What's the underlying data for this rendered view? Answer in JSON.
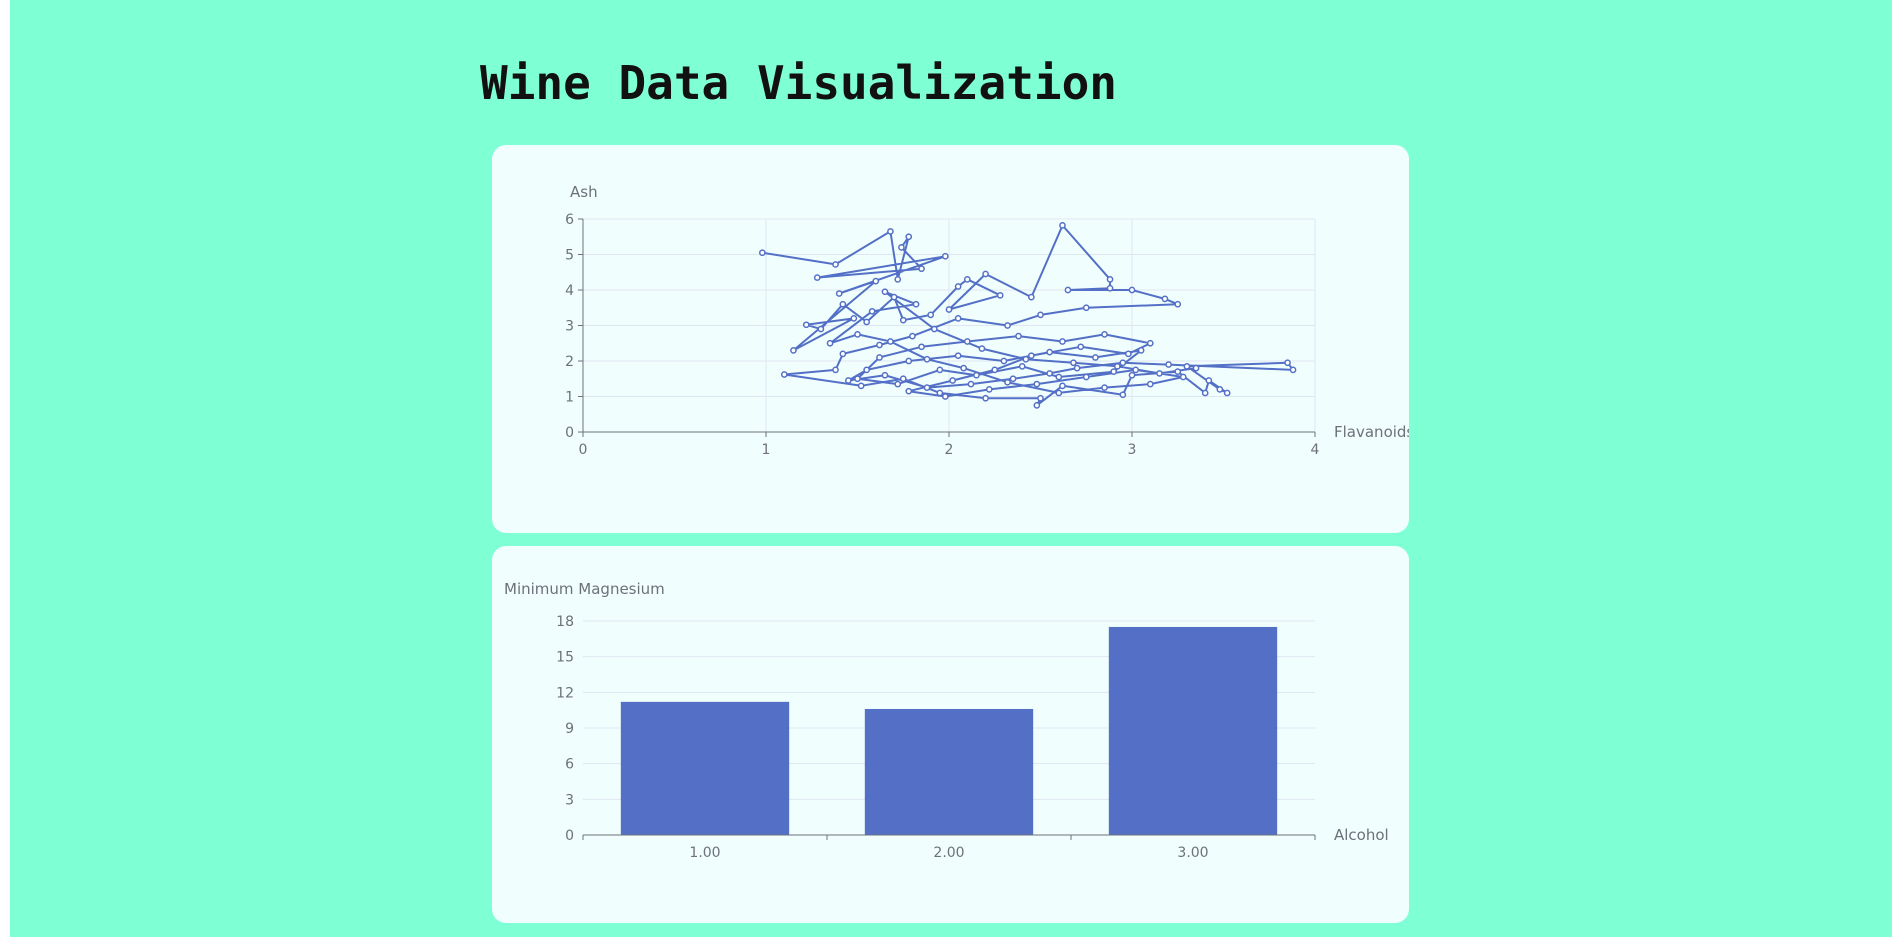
{
  "page": {
    "title": "Wine Data Visualization"
  },
  "colors": {
    "background": "#7fffd4",
    "card": "#f0fffe",
    "series": "#5470c6",
    "axis": "#6e7079",
    "grid": "#e0e6f1"
  },
  "chart_data": [
    {
      "type": "line",
      "title": "",
      "xlabel": "Flavanoids",
      "ylabel": "Ash",
      "xlim": [
        0,
        4
      ],
      "ylim": [
        0,
        6
      ],
      "x_ticks": [
        "0",
        "1",
        "2",
        "3",
        "4"
      ],
      "y_ticks": [
        "0",
        "1",
        "2",
        "3",
        "4",
        "5",
        "6"
      ],
      "grid": "both",
      "legend": "none",
      "marker": "hollow-circle",
      "points": [
        [
          0.98,
          5.05
        ],
        [
          1.38,
          4.72
        ],
        [
          1.68,
          5.65
        ],
        [
          1.72,
          4.3
        ],
        [
          1.78,
          5.5
        ],
        [
          1.74,
          5.2
        ],
        [
          1.85,
          4.6
        ],
        [
          1.28,
          4.35
        ],
        [
          1.98,
          4.95
        ],
        [
          1.4,
          3.9
        ],
        [
          1.6,
          4.25
        ],
        [
          1.15,
          2.3
        ],
        [
          1.48,
          3.2
        ],
        [
          1.22,
          3.02
        ],
        [
          1.3,
          2.9
        ],
        [
          1.42,
          3.6
        ],
        [
          1.55,
          3.1
        ],
        [
          1.7,
          3.8
        ],
        [
          1.75,
          3.15
        ],
        [
          1.9,
          3.3
        ],
        [
          2.05,
          4.1
        ],
        [
          2.1,
          4.3
        ],
        [
          2.28,
          3.85
        ],
        [
          2.0,
          3.45
        ],
        [
          2.2,
          4.45
        ],
        [
          2.45,
          3.8
        ],
        [
          2.62,
          5.82
        ],
        [
          2.88,
          4.3
        ],
        [
          2.88,
          4.05
        ],
        [
          2.65,
          4.0
        ],
        [
          3.0,
          4.0
        ],
        [
          3.18,
          3.75
        ],
        [
          3.25,
          3.6
        ],
        [
          2.75,
          3.5
        ],
        [
          2.5,
          3.3
        ],
        [
          2.32,
          3.0
        ],
        [
          2.05,
          3.2
        ],
        [
          1.8,
          2.7
        ],
        [
          1.62,
          2.45
        ],
        [
          1.42,
          2.2
        ],
        [
          1.38,
          1.75
        ],
        [
          1.1,
          1.62
        ],
        [
          1.52,
          1.3
        ],
        [
          1.75,
          1.5
        ],
        [
          1.95,
          1.1
        ],
        [
          2.2,
          0.95
        ],
        [
          2.5,
          0.95
        ],
        [
          2.48,
          0.75
        ],
        [
          2.62,
          1.3
        ],
        [
          2.95,
          1.05
        ],
        [
          3.0,
          1.6
        ],
        [
          3.25,
          1.7
        ],
        [
          3.4,
          1.1
        ],
        [
          3.42,
          1.45
        ],
        [
          3.52,
          1.1
        ],
        [
          3.48,
          1.2
        ],
        [
          3.3,
          1.85
        ],
        [
          3.85,
          1.95
        ],
        [
          3.88,
          1.75
        ],
        [
          3.2,
          1.9
        ],
        [
          2.95,
          1.95
        ],
        [
          2.7,
          1.8
        ],
        [
          2.55,
          1.65
        ],
        [
          2.35,
          1.5
        ],
        [
          2.12,
          1.35
        ],
        [
          1.88,
          1.25
        ],
        [
          1.65,
          1.6
        ],
        [
          1.45,
          1.45
        ],
        [
          1.55,
          1.75
        ],
        [
          1.78,
          2.0
        ],
        [
          2.05,
          2.15
        ],
        [
          2.3,
          2.0
        ],
        [
          2.55,
          2.25
        ],
        [
          2.8,
          2.1
        ],
        [
          3.05,
          2.3
        ],
        [
          2.9,
          1.7
        ],
        [
          2.6,
          1.55
        ],
        [
          2.4,
          1.85
        ],
        [
          2.15,
          1.6
        ],
        [
          1.95,
          1.75
        ],
        [
          1.72,
          1.35
        ],
        [
          1.5,
          1.5
        ],
        [
          1.62,
          2.1
        ],
        [
          1.85,
          2.4
        ],
        [
          2.1,
          2.55
        ],
        [
          2.38,
          2.7
        ],
        [
          2.62,
          2.55
        ],
        [
          2.85,
          2.75
        ],
        [
          3.1,
          2.5
        ],
        [
          2.98,
          2.2
        ],
        [
          2.72,
          2.4
        ],
        [
          2.45,
          2.15
        ],
        [
          2.25,
          1.75
        ],
        [
          2.02,
          1.45
        ],
        [
          1.78,
          1.15
        ],
        [
          1.98,
          1.0
        ],
        [
          2.22,
          1.2
        ],
        [
          2.48,
          1.35
        ],
        [
          2.75,
          1.55
        ],
        [
          3.02,
          1.75
        ],
        [
          3.28,
          1.55
        ],
        [
          3.1,
          1.35
        ],
        [
          2.85,
          1.25
        ],
        [
          2.6,
          1.1
        ],
        [
          2.32,
          1.4
        ],
        [
          2.08,
          1.8
        ],
        [
          1.88,
          2.05
        ],
        [
          1.68,
          2.55
        ],
        [
          1.5,
          2.75
        ],
        [
          1.35,
          2.5
        ],
        [
          1.58,
          3.4
        ],
        [
          1.82,
          3.6
        ],
        [
          1.65,
          3.95
        ],
        [
          1.92,
          2.9
        ],
        [
          2.18,
          2.35
        ],
        [
          2.42,
          2.05
        ],
        [
          2.68,
          1.95
        ],
        [
          2.92,
          1.85
        ],
        [
          3.15,
          1.65
        ],
        [
          3.35,
          1.8
        ]
      ]
    },
    {
      "type": "bar",
      "title": "",
      "xlabel": "Alcohol",
      "ylabel": "Minimum Magnesium",
      "categories": [
        "1.00",
        "2.00",
        "3.00"
      ],
      "values": [
        11.2,
        10.6,
        17.5
      ],
      "ylim": [
        0,
        18
      ],
      "y_ticks": [
        "0",
        "3",
        "6",
        "9",
        "12",
        "15",
        "18"
      ],
      "grid": "horizontal",
      "legend": "none"
    }
  ]
}
